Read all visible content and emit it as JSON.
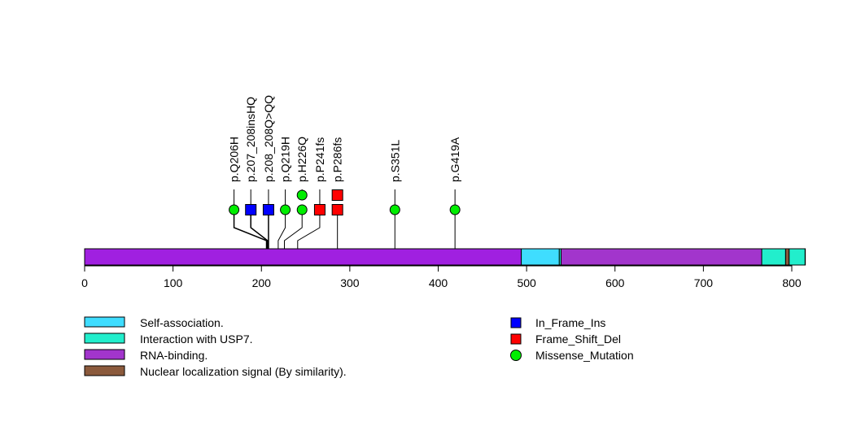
{
  "chart_data": {
    "type": "lollipop",
    "title": "",
    "xlabel": "",
    "ylabel": "",
    "protein_length": 819,
    "xlim": [
      0,
      819
    ],
    "x_ticks": [
      0,
      100,
      200,
      300,
      400,
      500,
      600,
      700,
      800
    ],
    "x_tick_labels": [
      "0",
      "100",
      "200",
      "300",
      "400",
      "500",
      "600",
      "700",
      "800"
    ],
    "backbone_color": "#A020E0",
    "domains": [
      {
        "name": "RNA-binding.",
        "start": 0,
        "end": 494,
        "color": "#A020E0"
      },
      {
        "name": "Self-association.",
        "start": 494,
        "end": 537,
        "color": "#3FDDFF"
      },
      {
        "name": "Interaction with USP7.",
        "start": 537,
        "end": 539,
        "color": "#22EECC"
      },
      {
        "name": "RNA-binding.",
        "start": 539,
        "end": 766,
        "color": "#A235CC"
      },
      {
        "name": "Interaction with USP7.",
        "start": 766,
        "end": 793,
        "color": "#22EECC"
      },
      {
        "name": "Nuclear localization signal (By similarity).",
        "start": 793,
        "end": 797,
        "color": "#8B5A3C"
      },
      {
        "name": "Interaction with USP7.",
        "start": 797,
        "end": 815,
        "color": "#22EECC"
      }
    ],
    "mutations": [
      {
        "label": "p.Q206H",
        "position": 206,
        "type": "Missense_Mutation",
        "count": 1,
        "display_offset": 169
      },
      {
        "label": "p.207_208insHQ",
        "position": 207,
        "type": "In_Frame_Ins",
        "count": 1,
        "display_offset": 188
      },
      {
        "label": "p.208_208Q>QQ",
        "position": 208,
        "type": "In_Frame_Ins",
        "count": 1,
        "display_offset": 208
      },
      {
        "label": "p.Q219H",
        "position": 219,
        "type": "Missense_Mutation",
        "count": 1,
        "display_offset": 227
      },
      {
        "label": "p.H226Q",
        "position": 226,
        "type": "Missense_Mutation",
        "count": 2,
        "display_offset": 246
      },
      {
        "label": "p.P241fs",
        "position": 241,
        "type": "Frame_Shift_Del",
        "count": 1,
        "display_offset": 266
      },
      {
        "label": "p.P286fs",
        "position": 286,
        "type": "Frame_Shift_Del",
        "count": 2,
        "display_offset": 286
      },
      {
        "label": "p.S351L",
        "position": 351,
        "type": "Missense_Mutation",
        "count": 1,
        "display_offset": 351
      },
      {
        "label": "p.G419A",
        "position": 419,
        "type": "Missense_Mutation",
        "count": 1,
        "display_offset": 419
      }
    ],
    "domain_legend": [
      {
        "label": "Self-association.",
        "color": "#3FDDFF"
      },
      {
        "label": "Interaction with USP7.",
        "color": "#22EECC"
      },
      {
        "label": "RNA-binding.",
        "color": "#A235CC"
      },
      {
        "label": "Nuclear localization signal (By similarity).",
        "color": "#8B5A3C"
      }
    ],
    "mutation_legend": [
      {
        "label": "In_Frame_Ins",
        "shape": "square",
        "color": "#0000FF"
      },
      {
        "label": "Frame_Shift_Del",
        "shape": "square",
        "color": "#FF0000"
      },
      {
        "label": "Missense_Mutation",
        "shape": "circle",
        "color": "#00EE00"
      }
    ],
    "legend_placement": "bottom"
  }
}
